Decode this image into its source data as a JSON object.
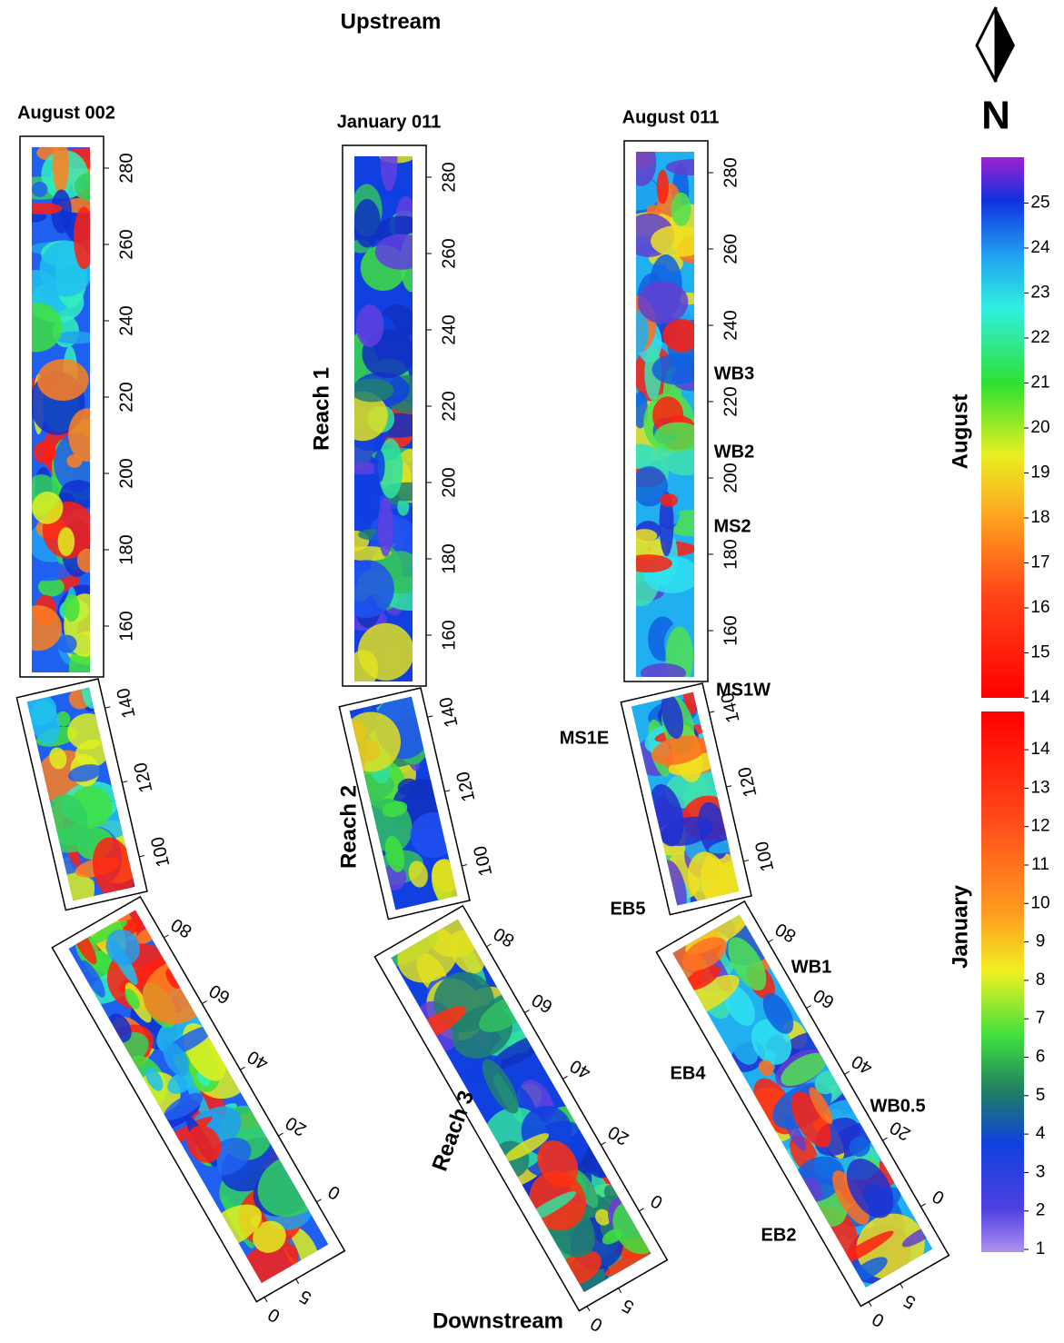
{
  "header": {
    "top": "Upstream",
    "bottom": "Downstream",
    "north": "N"
  },
  "panels": [
    {
      "title": "August 002",
      "reach1_ticks": [
        160,
        180,
        200,
        220,
        240,
        260,
        280
      ],
      "reach2_ticks": [
        100,
        120,
        140
      ],
      "reach3_ticks": [
        0,
        20,
        40,
        60,
        80
      ],
      "cross_ticks": [
        0,
        5
      ]
    },
    {
      "title": "January 011",
      "reach_labels": [
        "Reach 1",
        "Reach 2",
        "Reach 3"
      ],
      "reach1_ticks": [
        160,
        180,
        200,
        220,
        240,
        260,
        280
      ],
      "reach2_ticks": [
        100,
        120,
        140
      ],
      "reach3_ticks": [
        0,
        20,
        40,
        60,
        80
      ],
      "cross_ticks": [
        0,
        5
      ]
    },
    {
      "title": "August 011",
      "sites": [
        "WB3",
        "WB2",
        "MS2",
        "MS1W",
        "MS1E",
        "EB5",
        "WB1",
        "EB4",
        "WB0.5",
        "EB2"
      ],
      "reach1_ticks": [
        160,
        180,
        200,
        220,
        240,
        260,
        280
      ],
      "reach2_ticks": [
        100,
        120,
        140
      ],
      "reach3_ticks": [
        0,
        20,
        40,
        60,
        80
      ],
      "cross_ticks": [
        0,
        5
      ]
    }
  ],
  "legend": [
    {
      "label": "August",
      "ticks": [
        14,
        15,
        16,
        17,
        18,
        19,
        20,
        21,
        22,
        23,
        24,
        25
      ]
    },
    {
      "label": "January",
      "ticks": [
        1,
        2,
        3,
        4,
        5,
        6,
        7,
        8,
        9,
        10,
        11,
        12,
        13,
        14
      ]
    }
  ]
}
